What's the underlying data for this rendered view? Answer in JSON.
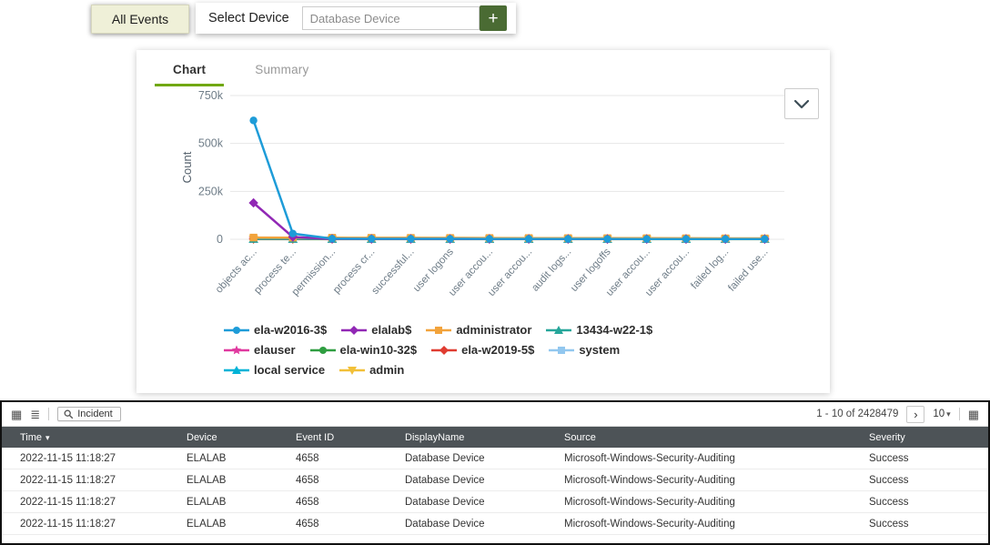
{
  "header": {
    "all_events_tab": "All Events"
  },
  "device_selector": {
    "label": "Select Device",
    "value": "Database Device",
    "add_label": "+"
  },
  "chart_panel": {
    "tab_chart": "Chart",
    "tab_summary": "Summary"
  },
  "icons": {
    "table_view": "▦",
    "list_view": "≣",
    "next_page": "›",
    "caret_down": "▾",
    "columns": "▦"
  },
  "chart_data": {
    "type": "line",
    "title": "",
    "ylabel": "Count",
    "ylim": [
      0,
      750000
    ],
    "grid": true,
    "legend_position": "bottom",
    "yticks": [
      {
        "value": 0,
        "label": "0"
      },
      {
        "value": 250000,
        "label": "250k"
      },
      {
        "value": 500000,
        "label": "500k"
      },
      {
        "value": 750000,
        "label": "750k"
      }
    ],
    "categories": [
      "objects ac...",
      "process te...",
      "permission...",
      "process cr...",
      "successful...",
      "user logons",
      "user accou...",
      "user accou...",
      "audit logs...",
      "user logoffs",
      "user accou...",
      "user accou...",
      "failed log...",
      "failed use..."
    ],
    "series": [
      {
        "name": "ela-w2016-3$",
        "color": "#1e9cd8",
        "marker": "circle",
        "values": [
          620000,
          30000,
          3200,
          2600,
          2400,
          2200,
          2000,
          1900,
          1800,
          1700,
          1600,
          1500,
          1400,
          1300
        ]
      },
      {
        "name": "elalab$",
        "color": "#9128b5",
        "marker": "diamond",
        "values": [
          190000,
          12000,
          2600,
          2100,
          1900,
          1700,
          1500,
          1400,
          1300,
          1200,
          1100,
          1000,
          900,
          800
        ]
      },
      {
        "name": "administrator",
        "color": "#f2a33c",
        "marker": "square",
        "values": [
          9000,
          8600,
          8200,
          7800,
          7400,
          7000,
          6700,
          6400,
          6100,
          5800,
          5500,
          5200,
          4900,
          4600
        ]
      },
      {
        "name": "13434-w22-1$",
        "color": "#26a69a",
        "marker": "triangle",
        "values": [
          2400,
          2400,
          2400,
          2400,
          2400,
          2400,
          2400,
          2400,
          2400,
          2400,
          2400,
          2400,
          2400,
          2400
        ]
      },
      {
        "name": "elauser",
        "color": "#e0399f",
        "marker": "star",
        "values": [
          2000,
          2000,
          2000,
          2000,
          2000,
          2000,
          2000,
          2000,
          2000,
          2000,
          2000,
          2000,
          2000,
          2000
        ]
      },
      {
        "name": "ela-win10-32$",
        "color": "#2f9e41",
        "marker": "circle",
        "values": [
          1700,
          1700,
          1700,
          1700,
          1700,
          1700,
          1700,
          1700,
          1700,
          1700,
          1700,
          1700,
          1700,
          1700
        ]
      },
      {
        "name": "ela-w2019-5$",
        "color": "#e03c31",
        "marker": "diamond",
        "values": [
          1400,
          1400,
          1400,
          1400,
          1400,
          1400,
          1400,
          1400,
          1400,
          1400,
          1400,
          1400,
          1400,
          1400
        ]
      },
      {
        "name": "system",
        "color": "#92c7ef",
        "marker": "square",
        "values": [
          1100,
          1100,
          1100,
          1100,
          1100,
          1100,
          1100,
          1100,
          1100,
          1100,
          1100,
          1100,
          1100,
          1100
        ]
      },
      {
        "name": "local service",
        "color": "#00b3d7",
        "marker": "triangle",
        "values": [
          800,
          800,
          800,
          800,
          800,
          800,
          800,
          800,
          800,
          800,
          800,
          800,
          800,
          800
        ]
      },
      {
        "name": "admin",
        "color": "#f2c038",
        "marker": "triangle-down",
        "values": [
          500,
          500,
          500,
          500,
          500,
          500,
          500,
          500,
          500,
          500,
          500,
          500,
          500,
          500
        ]
      }
    ]
  },
  "table": {
    "toolbar": {
      "incident": "Incident",
      "pagination": "1 - 10 of 2428479",
      "page_size": "10"
    },
    "columns": [
      "Time",
      "Device",
      "Event ID",
      "DisplayName",
      "Source",
      "Severity"
    ],
    "rows": [
      [
        "2022-11-15 11:18:27",
        "ELALAB",
        "4658",
        "Database Device",
        "Microsoft-Windows-Security-Auditing",
        "Success"
      ],
      [
        "2022-11-15 11:18:27",
        "ELALAB",
        "4658",
        "Database Device",
        "Microsoft-Windows-Security-Auditing",
        "Success"
      ],
      [
        "2022-11-15 11:18:27",
        "ELALAB",
        "4658",
        "Database Device",
        "Microsoft-Windows-Security-Auditing",
        "Success"
      ],
      [
        "2022-11-15 11:18:27",
        "ELALAB",
        "4658",
        "Database Device",
        "Microsoft-Windows-Security-Auditing",
        "Success"
      ]
    ]
  }
}
